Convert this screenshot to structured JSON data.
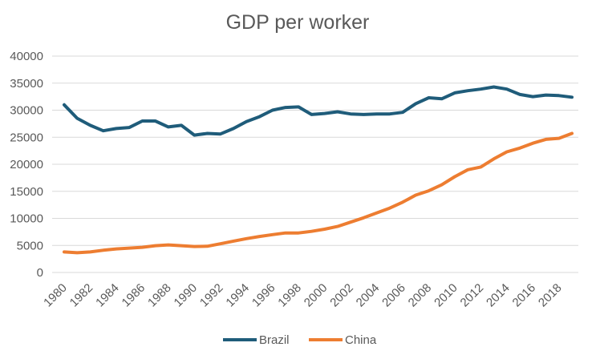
{
  "chart_data": {
    "type": "line",
    "title": "GDP per worker",
    "xlabel": "",
    "ylabel": "",
    "ylim": [
      0,
      40000
    ],
    "yticks": [
      0,
      5000,
      10000,
      15000,
      20000,
      25000,
      30000,
      35000,
      40000
    ],
    "x": [
      1980,
      1981,
      1982,
      1983,
      1984,
      1985,
      1986,
      1987,
      1988,
      1989,
      1990,
      1991,
      1992,
      1993,
      1994,
      1995,
      1996,
      1997,
      1998,
      1999,
      2000,
      2001,
      2002,
      2003,
      2004,
      2005,
      2006,
      2007,
      2008,
      2009,
      2010,
      2011,
      2012,
      2013,
      2014,
      2015,
      2016,
      2017,
      2018,
      2019
    ],
    "xticks": [
      1980,
      1982,
      1984,
      1986,
      1988,
      1990,
      1992,
      1994,
      1996,
      1998,
      2000,
      2002,
      2004,
      2006,
      2008,
      2010,
      2012,
      2014,
      2016,
      2018
    ],
    "grid": true,
    "legend_position": "bottom",
    "series": [
      {
        "name": "Brazil",
        "color": "#1f5c7a",
        "values": [
          31000,
          28500,
          27200,
          26200,
          26600,
          26800,
          28000,
          28000,
          26900,
          27200,
          25400,
          25700,
          25600,
          26600,
          27900,
          28800,
          30000,
          30500,
          30600,
          29200,
          29400,
          29700,
          29300,
          29200,
          29300,
          29300,
          29600,
          31200,
          32300,
          32100,
          33200,
          33600,
          33900,
          34300,
          33900,
          32900,
          32500,
          32800,
          32700,
          32400
        ]
      },
      {
        "name": "China",
        "color": "#ed7d31",
        "values": [
          3800,
          3650,
          3800,
          4100,
          4350,
          4500,
          4650,
          4950,
          5100,
          4950,
          4800,
          4850,
          5300,
          5800,
          6250,
          6650,
          7000,
          7300,
          7300,
          7600,
          8000,
          8500,
          9300,
          10100,
          11000,
          11900,
          13000,
          14300,
          15100,
          16200,
          17700,
          19000,
          19500,
          21000,
          22300,
          23000,
          23900,
          24600,
          24800,
          25700
        ]
      }
    ]
  }
}
